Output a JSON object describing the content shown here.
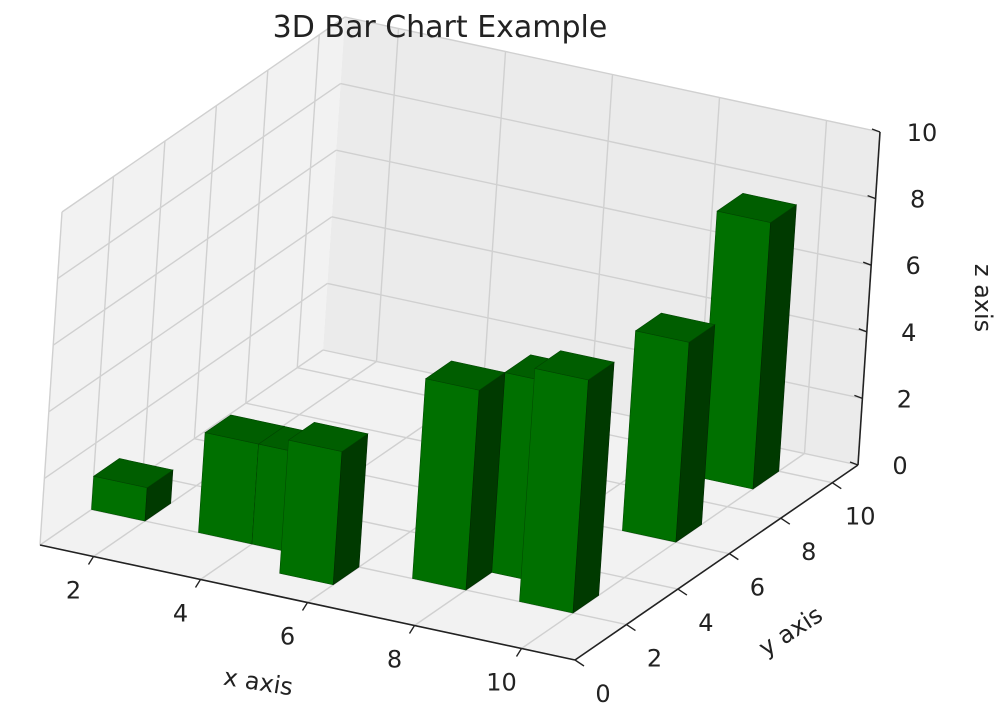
{
  "chart_data": {
    "type": "bar3d",
    "title": "3D Bar Chart Example",
    "xlabel": "x axis",
    "ylabel": "y axis",
    "zlabel": "z axis",
    "xlim": [
      1,
      11
    ],
    "ylim": [
      0,
      11
    ],
    "zlim": [
      0,
      10
    ],
    "x_ticks": [
      "2",
      "4",
      "6",
      "8",
      "10"
    ],
    "y_ticks": [
      "0",
      "2",
      "4",
      "6",
      "8",
      "10"
    ],
    "z_ticks": [
      "0",
      "2",
      "4",
      "6",
      "8",
      "10"
    ],
    "grid": true,
    "bar_color": "#007000",
    "bars": [
      {
        "x": 1,
        "y": 2,
        "z0": 0,
        "dz": 1
      },
      {
        "x": 3,
        "y": 2,
        "z0": 0,
        "dz": 3
      },
      {
        "x": 4,
        "y": 2,
        "z0": 0,
        "dz": 3
      },
      {
        "x": 5,
        "y": 1,
        "z0": 0,
        "dz": 4
      },
      {
        "x": 7,
        "y": 2,
        "z0": 0,
        "dz": 6
      },
      {
        "x": 8,
        "y": 3,
        "z0": 0,
        "dz": 6
      },
      {
        "x": 9,
        "y": 2,
        "z0": 0,
        "dz": 7
      },
      {
        "x": 9,
        "y": 6,
        "z0": 0,
        "dz": 6
      },
      {
        "x": 9,
        "y": 9,
        "z0": 0,
        "dz": 8
      }
    ],
    "bar_dx": 1,
    "bar_dy": 1
  }
}
